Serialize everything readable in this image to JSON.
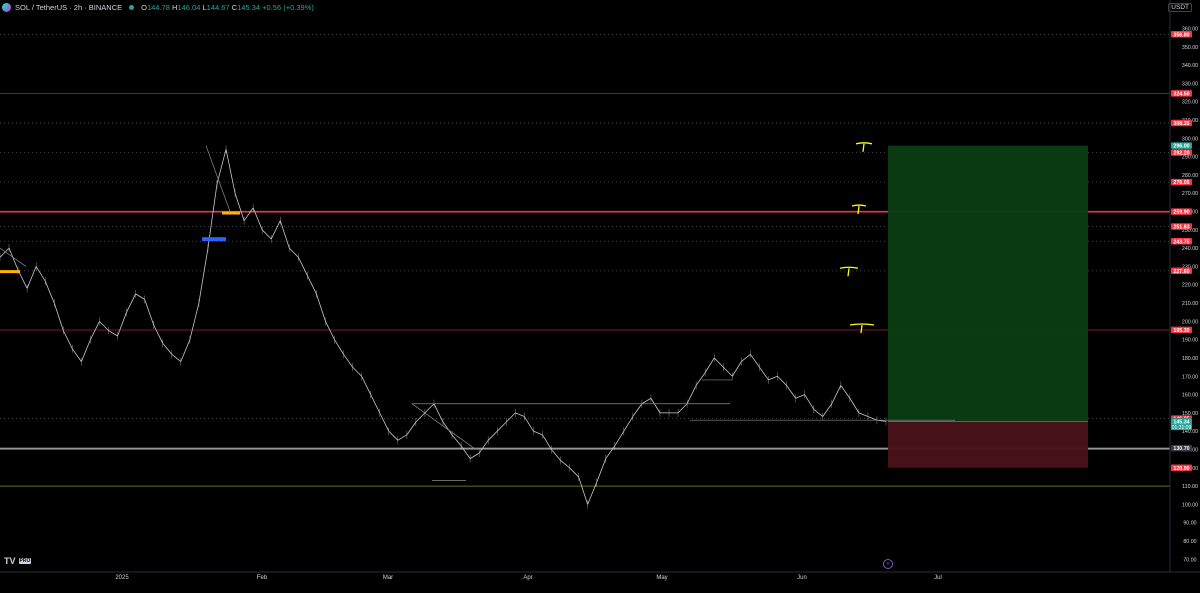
{
  "legend": {
    "symbol": "SOL / TetherUS · 2h · BINANCE",
    "open_label": "O",
    "open": "144.78",
    "high_label": "H",
    "high": "146.04",
    "low_label": "L",
    "low": "144.67",
    "close_label": "C",
    "close": "145.34",
    "change": "+0.56 (+0.39%)"
  },
  "currency": "USDT",
  "branding": {
    "logo": "TV",
    "badge": "PRO"
  },
  "colors": {
    "background": "#000000",
    "price_line": "#c8c8c8",
    "red_level": "#f23645",
    "green_price": "#26a69a",
    "target_zone": "#0b3d12",
    "stop_zone": "#4a1218",
    "annotation": "#ffff00"
  },
  "chart_data": {
    "type": "line",
    "x_ticks": [
      "2025",
      "Feb",
      "Mar",
      "Apr",
      "May",
      "Jun",
      "Jul"
    ],
    "y_ticks": [
      360,
      350,
      340,
      330,
      320,
      310,
      300,
      290,
      280,
      270,
      260,
      250,
      240,
      230,
      220,
      210,
      200,
      190,
      180,
      170,
      160,
      150,
      140,
      130,
      120,
      110,
      100,
      90,
      80,
      70
    ],
    "ylim": [
      65,
      370
    ],
    "grid": false,
    "series": [
      {
        "values": [
          235,
          240,
          228,
          218,
          230,
          222,
          210,
          195,
          185,
          178,
          190,
          200,
          195,
          192,
          205,
          215,
          212,
          198,
          188,
          182,
          178,
          190,
          210,
          240,
          275,
          294,
          270,
          255,
          262,
          250,
          245,
          255,
          240,
          235,
          225,
          215,
          200,
          190,
          182,
          175,
          170,
          160,
          150,
          140,
          135,
          138,
          145,
          150,
          155,
          145,
          138,
          132,
          125,
          128,
          135,
          140,
          145,
          150,
          148,
          140,
          138,
          130,
          124,
          120,
          115,
          100,
          112,
          125,
          132,
          140,
          148,
          155,
          158,
          150,
          150,
          150,
          155,
          165,
          172,
          180,
          175,
          170,
          178,
          182,
          175,
          168,
          170,
          165,
          158,
          160,
          152,
          148,
          155,
          165,
          158,
          150,
          148,
          146,
          145.34
        ]
      }
    ],
    "price_labels": [
      {
        "value": 356.8,
        "label": "356.80",
        "color": "#f23645"
      },
      {
        "value": 324.5,
        "label": "324.50",
        "color": "#f23645"
      },
      {
        "value": 308.35,
        "label": "308.35",
        "color": "#f23645"
      },
      {
        "value": 296.0,
        "label": "296.00",
        "color": "#26a69a"
      },
      {
        "value": 292.2,
        "label": "292.20",
        "color": "#f23645"
      },
      {
        "value": 276.05,
        "label": "276.05",
        "color": "#f23645"
      },
      {
        "value": 259.9,
        "label": "259.90",
        "color": "#f23645"
      },
      {
        "value": 251.83,
        "label": "251.83",
        "color": "#f23645"
      },
      {
        "value": 243.75,
        "label": "243.75",
        "color": "#f23645"
      },
      {
        "value": 227.6,
        "label": "227.60",
        "color": "#f23645"
      },
      {
        "value": 195.3,
        "label": "195.30",
        "color": "#f23645"
      },
      {
        "value": 146.85,
        "label": "146.85",
        "color": "#f23645"
      },
      {
        "value": 145.46,
        "label": "145.46",
        "color": "#131722"
      },
      {
        "value": 145.34,
        "label": "145.34",
        "sublabel": "01:31:09",
        "color": "#26a69a"
      },
      {
        "value": 130.7,
        "label": "130.70",
        "color": "#363a45"
      },
      {
        "value": 120.0,
        "label": "120.00",
        "color": "#f23645"
      }
    ],
    "horizontal_levels": [
      {
        "value": 356.8,
        "style": "dotted",
        "color": "#555555"
      },
      {
        "value": 324.5,
        "style": "solid",
        "color": "#7a1a22"
      },
      {
        "value": 308.35,
        "style": "dotted",
        "color": "#555555"
      },
      {
        "value": 292.2,
        "style": "dotted",
        "color": "#555555"
      },
      {
        "value": 276.05,
        "style": "dotted",
        "color": "#555555"
      },
      {
        "value": 259.9,
        "style": "solid",
        "color": "#f23645"
      },
      {
        "value": 251.83,
        "style": "dotted",
        "color": "#555555"
      },
      {
        "value": 243.75,
        "style": "dotted",
        "color": "#555555"
      },
      {
        "value": 227.6,
        "style": "dotted",
        "color": "#555555"
      },
      {
        "value": 195.3,
        "style": "solid",
        "color": "#7a1a22"
      },
      {
        "value": 146.85,
        "style": "dotted",
        "color": "#555555"
      },
      {
        "value": 130.7,
        "style": "solid",
        "color": "#c8c8c8"
      },
      {
        "value": 110.0,
        "style": "solid",
        "color": "#6b6b20"
      }
    ],
    "position": {
      "entry": 145.34,
      "target": 296.0,
      "stop": 120.0,
      "start_month": "Jun",
      "end_month": "Jul"
    }
  }
}
